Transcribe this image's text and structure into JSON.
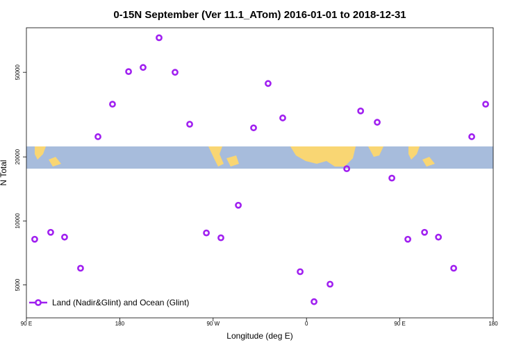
{
  "chart_data": {
    "type": "scatter",
    "title": "0-15N September (Ver 11.1_ATom)   2016-01-01 to 2018-12-31",
    "x_label": "Longitude (deg E)",
    "y_label": "N Total",
    "xlim": [
      90,
      540
    ],
    "xticks": [
      {
        "value": 90,
        "label": "90 E"
      },
      180,
      {
        "value": 270,
        "label": "90 W"
      },
      {
        "value": 360,
        "label": "0"
      },
      {
        "value": 450,
        "label": "90 E"
      },
      {
        "value": 540,
        "label": "180"
      }
    ],
    "ylim": [
      3500,
      81000
    ],
    "ylog": true,
    "yticks": [
      5000,
      10000,
      20000,
      50000
    ],
    "legend": "bottomleft",
    "series": [
      {
        "name": "Land (Nadir&Glint) and Ocean (Glint)",
        "color": "#a020f0",
        "x": [
          98,
          113.4,
          126.8,
          142.2,
          159,
          173,
          188.5,
          202.5,
          217.9,
          233.3,
          247.4,
          263.5,
          277.5,
          294.3,
          309,
          323,
          337.1,
          353.9,
          367.3,
          382.7,
          398.8,
          412.2,
          428.2,
          442.3,
          457.7,
          473.8,
          487.2,
          501.9,
          519.3,
          532.7
        ],
        "values": [
          8200,
          8840,
          8390,
          5990,
          24900,
          35400,
          50400,
          52700,
          72700,
          50000,
          28500,
          8780,
          8330,
          11850,
          27400,
          44300,
          30500,
          5770,
          4170,
          5040,
          17600,
          32900,
          29100,
          15900,
          8200,
          8840,
          8390,
          5990,
          24900,
          35400
        ]
      }
    ]
  }
}
